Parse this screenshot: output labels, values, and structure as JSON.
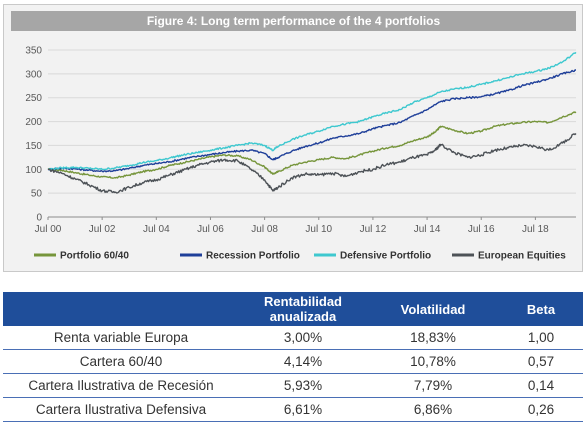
{
  "figure": {
    "title": "Figure 4: Long term performance of the 4 portfolios"
  },
  "chart_data": {
    "type": "line",
    "title": "Figure 4: Long term performance of the 4 portfolios",
    "x_ticks": [
      "Jul 00",
      "Jul 02",
      "Jul 04",
      "Jul 06",
      "Jul 08",
      "Jul 10",
      "Jul 12",
      "Jul 14",
      "Jul 16",
      "Jul 18"
    ],
    "y_ticks": [
      "0",
      "50",
      "100",
      "150",
      "200",
      "250",
      "300",
      "350"
    ],
    "ylim": [
      0,
      350
    ],
    "xlim": [
      2000.5,
      2020.0
    ],
    "grid": "horizontal",
    "legend_position": "bottom",
    "series": [
      {
        "name": "Portfolio 60/40",
        "color": "#76953b",
        "x": [
          2000.5,
          2001.0,
          2001.5,
          2002.0,
          2002.5,
          2003.0,
          2003.5,
          2004.0,
          2004.5,
          2005.0,
          2005.5,
          2006.0,
          2006.5,
          2007.0,
          2007.5,
          2008.0,
          2008.5,
          2008.8,
          2009.0,
          2009.5,
          2010.0,
          2010.5,
          2011.0,
          2011.5,
          2012.0,
          2012.5,
          2013.0,
          2013.5,
          2014.0,
          2014.5,
          2014.8,
          2015.0,
          2015.5,
          2016.0,
          2016.5,
          2017.0,
          2017.5,
          2018.0,
          2018.5,
          2019.0,
          2019.5,
          2020.0
        ],
        "values": [
          100,
          98,
          93,
          88,
          84,
          82,
          88,
          95,
          100,
          108,
          114,
          120,
          126,
          130,
          128,
          120,
          105,
          90,
          95,
          108,
          115,
          120,
          125,
          122,
          130,
          138,
          145,
          150,
          160,
          168,
          178,
          190,
          182,
          175,
          180,
          190,
          195,
          198,
          200,
          198,
          210,
          220
        ]
      },
      {
        "name": "Recession Portfolio",
        "color": "#1f3f99",
        "x": [
          2000.5,
          2001.0,
          2001.5,
          2002.0,
          2002.5,
          2003.0,
          2003.5,
          2004.0,
          2004.5,
          2005.0,
          2005.5,
          2006.0,
          2006.5,
          2007.0,
          2007.5,
          2008.0,
          2008.5,
          2008.8,
          2009.0,
          2009.5,
          2010.0,
          2010.5,
          2011.0,
          2011.5,
          2012.0,
          2012.5,
          2013.0,
          2013.5,
          2014.0,
          2014.5,
          2015.0,
          2015.5,
          2016.0,
          2016.5,
          2017.0,
          2017.5,
          2018.0,
          2018.5,
          2019.0,
          2019.5,
          2020.0
        ],
        "values": [
          100,
          102,
          101,
          98,
          96,
          97,
          102,
          108,
          112,
          116,
          122,
          127,
          131,
          135,
          138,
          140,
          133,
          120,
          125,
          138,
          148,
          155,
          165,
          170,
          175,
          185,
          192,
          198,
          212,
          225,
          242,
          248,
          250,
          252,
          258,
          265,
          275,
          282,
          290,
          300,
          308
        ]
      },
      {
        "name": "Defensive Portfolio",
        "color": "#3ec8cf",
        "x": [
          2000.5,
          2001.0,
          2001.5,
          2002.0,
          2002.5,
          2003.0,
          2003.5,
          2004.0,
          2004.5,
          2005.0,
          2005.5,
          2006.0,
          2006.5,
          2007.0,
          2007.5,
          2008.0,
          2008.5,
          2008.8,
          2009.0,
          2009.5,
          2010.0,
          2010.5,
          2011.0,
          2011.5,
          2012.0,
          2012.5,
          2013.0,
          2013.5,
          2014.0,
          2014.5,
          2015.0,
          2015.5,
          2016.0,
          2016.5,
          2017.0,
          2017.5,
          2018.0,
          2018.5,
          2019.0,
          2019.5,
          2020.0
        ],
        "values": [
          100,
          103,
          104,
          102,
          100,
          103,
          108,
          114,
          118,
          124,
          130,
          135,
          140,
          145,
          150,
          155,
          150,
          140,
          148,
          162,
          172,
          180,
          190,
          195,
          200,
          210,
          218,
          225,
          240,
          250,
          262,
          268,
          272,
          278,
          285,
          292,
          300,
          305,
          312,
          325,
          345
        ]
      },
      {
        "name": "European Equities",
        "color": "#4d5257",
        "x": [
          2000.5,
          2001.0,
          2001.5,
          2002.0,
          2002.5,
          2003.0,
          2003.5,
          2004.0,
          2004.5,
          2005.0,
          2005.5,
          2006.0,
          2006.5,
          2007.0,
          2007.5,
          2008.0,
          2008.5,
          2008.8,
          2009.0,
          2009.5,
          2010.0,
          2010.5,
          2011.0,
          2011.5,
          2012.0,
          2012.5,
          2013.0,
          2013.5,
          2014.0,
          2014.5,
          2014.8,
          2015.0,
          2015.5,
          2016.0,
          2016.5,
          2017.0,
          2017.5,
          2018.0,
          2018.5,
          2019.0,
          2019.5,
          2020.0
        ],
        "values": [
          100,
          92,
          80,
          68,
          55,
          52,
          62,
          72,
          78,
          88,
          98,
          108,
          115,
          120,
          118,
          100,
          78,
          55,
          62,
          82,
          90,
          88,
          92,
          85,
          95,
          100,
          110,
          115,
          125,
          130,
          140,
          152,
          135,
          125,
          130,
          140,
          145,
          150,
          148,
          140,
          155,
          175
        ]
      }
    ]
  },
  "table": {
    "headers": {
      "name": "",
      "rentabilidad": "Rentabilidad anualizada",
      "volatilidad": "Volatilidad",
      "beta": "Beta"
    },
    "rows": [
      {
        "name": "Renta variable Europa",
        "rentabilidad": "3,00%",
        "volatilidad": "18,83%",
        "beta": "1,00"
      },
      {
        "name": "Cartera 60/40",
        "rentabilidad": "4,14%",
        "volatilidad": "10,78%",
        "beta": "0,57"
      },
      {
        "name": "Cartera Ilustrativa de Recesión",
        "rentabilidad": "5,93%",
        "volatilidad": "7,79%",
        "beta": "0,14"
      },
      {
        "name": "Cartera Ilustrativa Defensiva",
        "rentabilidad": "6,61%",
        "volatilidad": "6,86%",
        "beta": "0,26"
      }
    ]
  }
}
